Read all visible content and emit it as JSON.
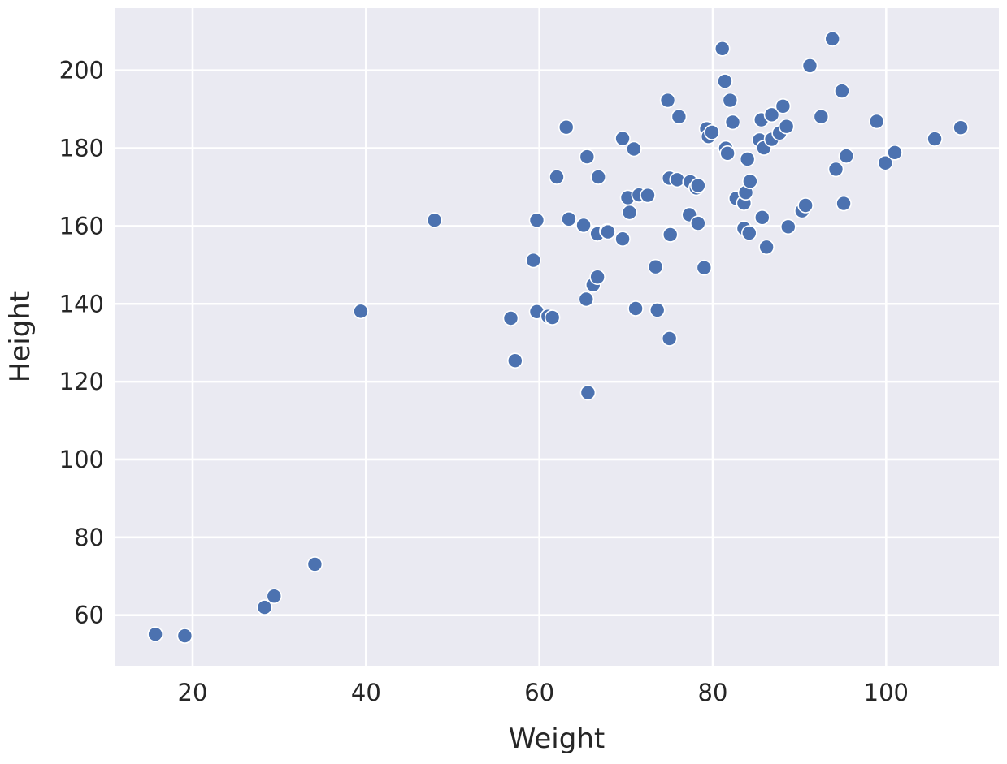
{
  "chart_data": {
    "type": "scatter",
    "xlabel": "Weight",
    "ylabel": "Height",
    "xlim": [
      11,
      113
    ],
    "ylim": [
      47,
      216
    ],
    "x_ticks": [
      20,
      40,
      60,
      80,
      100
    ],
    "y_ticks": [
      60,
      80,
      100,
      120,
      140,
      160,
      180,
      200
    ],
    "grid": true,
    "legend": "none",
    "colors": {
      "background": "#eaeaf2",
      "grid": "#ffffff",
      "point": "#4c72b0",
      "point_edge": "#ffffff",
      "text": "#262626"
    },
    "x": [
      15.7,
      19.1,
      28.3,
      29.4,
      34.1,
      39.4,
      47.9,
      56.7,
      57.2,
      59.3,
      59.7,
      59.7,
      61.0,
      61.5,
      62.0,
      63.1,
      63.4,
      65.1,
      65.4,
      65.5,
      65.6,
      66.2,
      66.7,
      66.7,
      66.8,
      67.8,
      67.9,
      69.6,
      69.6,
      70.2,
      70.4,
      70.9,
      71.1,
      71.5,
      72.5,
      73.4,
      73.6,
      74.8,
      75.0,
      75.0,
      75.1,
      75.9,
      76.1,
      77.3,
      77.4,
      78.1,
      78.3,
      78.3,
      79.0,
      79.3,
      79.5,
      79.9,
      81.1,
      81.4,
      81.5,
      81.7,
      82.0,
      82.3,
      82.7,
      83.6,
      83.6,
      83.8,
      84.0,
      84.2,
      84.3,
      85.4,
      85.6,
      85.7,
      85.9,
      86.2,
      86.8,
      86.8,
      87.7,
      88.1,
      88.5,
      88.7,
      90.3,
      90.7,
      91.2,
      92.5,
      93.8,
      94.2,
      94.9,
      95.1,
      95.4,
      98.9,
      99.9,
      101.0,
      105.6,
      108.6
    ],
    "y": [
      55.1,
      54.7,
      62.0,
      64.9,
      73.1,
      138.1,
      161.5,
      136.3,
      125.4,
      151.2,
      161.5,
      138.0,
      136.8,
      136.5,
      172.6,
      185.4,
      161.8,
      160.2,
      141.2,
      177.8,
      117.2,
      144.9,
      158.0,
      146.9,
      172.6,
      158.7,
      158.5,
      182.5,
      156.7,
      167.3,
      163.5,
      179.8,
      138.8,
      168.0,
      167.9,
      149.5,
      138.4,
      192.3,
      172.3,
      131.1,
      157.8,
      171.9,
      188.1,
      162.9,
      171.4,
      169.8,
      170.4,
      160.7,
      149.3,
      185.0,
      183.0,
      184.1,
      205.6,
      197.2,
      180.0,
      178.7,
      192.3,
      186.7,
      167.1,
      165.9,
      159.4,
      168.6,
      177.2,
      158.2,
      171.5,
      182.1,
      187.3,
      162.2,
      180.1,
      154.6,
      182.3,
      188.6,
      183.9,
      190.8,
      185.6,
      159.8,
      163.9,
      165.3,
      201.2,
      188.1,
      208.1,
      174.6,
      194.7,
      165.8,
      178.0,
      186.9,
      176.2,
      178.9,
      182.4,
      185.3
    ]
  }
}
